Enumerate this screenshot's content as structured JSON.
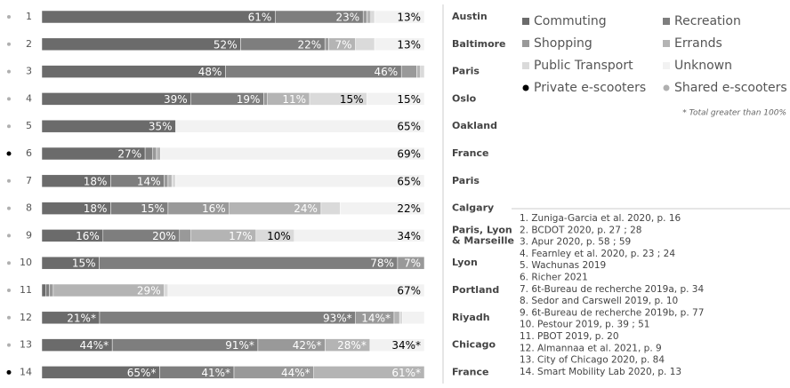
{
  "chart_data": {
    "type": "stacked_bar_horizontal_normalized",
    "categories": [
      "1",
      "2",
      "3",
      "4",
      "5",
      "6",
      "7",
      "8",
      "9",
      "10",
      "11",
      "12",
      "13",
      "14"
    ],
    "cities": [
      "Austin",
      "Baltimore",
      "Paris",
      "Oslo",
      "Oakland",
      "France",
      "Paris",
      "Calgary",
      "Paris, Lyon\n& Marseille",
      "Lyon",
      "Portland",
      "Riyadh",
      "Chicago",
      "France"
    ],
    "series": [
      {
        "name": "Commuting",
        "color": "#6b6b6b",
        "label_color": "#ffffff",
        "values": [
          61,
          52,
          48,
          39,
          35,
          27,
          18,
          18,
          16,
          15,
          1,
          21,
          44,
          65
        ],
        "value_labels": [
          "61%",
          "52%",
          "48%",
          "39%",
          "35%",
          "27%",
          "18%",
          "18%",
          "16%",
          "15%",
          null,
          "21%*",
          "44%*",
          "65%*"
        ]
      },
      {
        "name": "Recreation",
        "color": "#7e7e7e",
        "label_color": "#ffffff",
        "values": [
          23,
          22,
          46,
          19,
          0,
          2,
          14,
          15,
          20,
          78,
          1,
          93,
          91,
          41
        ],
        "value_labels": [
          "23%",
          "22%",
          "46%",
          "19%",
          null,
          null,
          "14%",
          "15%",
          "20%",
          "78%",
          null,
          "93%*",
          "91%*",
          "41%*"
        ]
      },
      {
        "name": "Shopping",
        "color": "#999999",
        "label_color": "#ffffff",
        "values": [
          1,
          1,
          4,
          1,
          0,
          1,
          1,
          16,
          3,
          7,
          1,
          14,
          42,
          44
        ],
        "value_labels": [
          null,
          null,
          null,
          null,
          null,
          null,
          null,
          "16%",
          null,
          "7%",
          null,
          "14%*",
          "42%*",
          "44%*"
        ]
      },
      {
        "name": "Errands",
        "color": "#b4b4b4",
        "label_color": "#ffffff",
        "values": [
          1,
          7,
          1,
          11,
          0,
          1,
          1,
          24,
          17,
          0,
          29,
          2,
          28,
          61
        ],
        "value_labels": [
          null,
          "7%",
          null,
          "11%",
          null,
          null,
          null,
          "24%",
          "17%",
          null,
          "29%",
          null,
          "28%*",
          "61%*"
        ]
      },
      {
        "name": "Public Transport",
        "color": "#dadada",
        "label_color": "#000000",
        "values": [
          1,
          5,
          1,
          15,
          0,
          0,
          1,
          5,
          10,
          0,
          1,
          1,
          0,
          0
        ],
        "value_labels": [
          null,
          null,
          null,
          "15%",
          null,
          null,
          null,
          null,
          "10%",
          null,
          null,
          null,
          null,
          null
        ]
      },
      {
        "name": "Unknown",
        "color": "#f2f2f2",
        "label_color": "#000000",
        "values": [
          13,
          13,
          0,
          15,
          65,
          69,
          65,
          22,
          34,
          0,
          67,
          8,
          34,
          0
        ],
        "value_labels": [
          "13%",
          "13%",
          null,
          "15%",
          "65%",
          "69%",
          "65%",
          "22%",
          "34%",
          null,
          "67%",
          null,
          "34%*",
          null
        ]
      }
    ],
    "marker_legend": [
      {
        "name": "Private e-scooters",
        "color": "#000000"
      },
      {
        "name": "Shared e-scooters",
        "color": "#b0b0b0"
      }
    ],
    "row_marker": [
      1,
      1,
      1,
      1,
      1,
      0,
      1,
      1,
      1,
      1,
      1,
      1,
      1,
      0
    ],
    "note": "* Total greater than 100%",
    "references": [
      "1.  Zuniga-Garcia et al. 2020, p. 16",
      "2.  BCDOT 2020, p. 27 ; 28",
      "3.  Apur 2020, p. 58 ; 59",
      "4.  Fearnley et al. 2020, p. 23 ; 24",
      "5.  Wachunas 2019",
      "6.  Richer 2021",
      "7.  6t-Bureau de recherche 2019a, p. 34",
      "8.  Sedor and Carswell 2019, p. 10",
      "9.  6t-Bureau de recherche 2019b, p. 77",
      "10. Pestour 2019, p. 39 ; 51",
      "11. PBOT 2019, p. 20",
      "12. Almannaa et al. 2021, p. 9",
      "13. City of Chicago 2020, p. 84",
      "14. Smart Mobility Lab 2020, p. 13"
    ]
  }
}
